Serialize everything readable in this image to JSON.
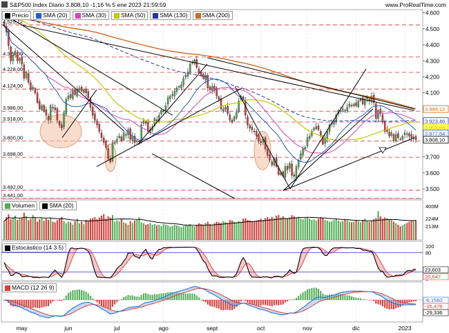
{
  "header": {
    "title": "S&P500 Index Diario 3.808,10 -1,16 % 5 ene 2023 21:59:59",
    "site": "www.ProRealTime.com"
  },
  "colors": {
    "up": "#4caf50",
    "down": "#e53935",
    "sma20": "#1f5fd6",
    "sma30": "#e040c0",
    "sma50": "#c8c800",
    "sma130": "#2233aa",
    "sma200": "#d2691e",
    "trend": "#000000",
    "hline": "#d62728"
  },
  "chart_data": [
    {
      "type": "candlestick",
      "name": "price",
      "legend": [
        "Precio",
        "SMA (20)",
        "SMA (30)",
        "SMA (50)",
        "SMA (130)",
        "SMA (200)"
      ],
      "x_ticks": [
        "may",
        "jun",
        "jul",
        "ago",
        "sept",
        "oct",
        "nov",
        "dic",
        "2023"
      ],
      "ylim": [
        3440,
        4620
      ],
      "y_ticks": [
        3500,
        3600,
        3700,
        3800,
        3900,
        4000,
        4100,
        4200,
        4300,
        4400,
        4500,
        4600
      ],
      "y_tick_labels": [
        "3.500",
        "3.600",
        "3.700",
        "3.800",
        "3.900",
        "4.000",
        "4.100",
        "4.200",
        "4.300",
        "4.400",
        "4.500",
        "4.600"
      ],
      "horizontal_levels": [
        3441,
        3492,
        3698,
        3800,
        3918,
        3986,
        4124,
        4228,
        4324,
        4525
      ],
      "horizontal_level_labels": [
        "3.441,00",
        "3.492,00",
        "3.698,00",
        "3.800,00",
        "3.918,00",
        "3.986,00",
        "4.124,00",
        "4.228,00",
        "4.324,00",
        "4.525,12"
      ],
      "right_value_labels": [
        {
          "value": 3999.12,
          "label": "3.999,12",
          "series": "SMA (200)"
        },
        {
          "value": 3923.46,
          "label": "3.923,46",
          "series": "SMA (130)"
        },
        {
          "value": 3903.65,
          "label": "3.903,65",
          "series": "SMA (50)"
        },
        {
          "value": 3877.84,
          "label": "3.877,84",
          "series": "SMA (20)"
        },
        {
          "value": 3808.1,
          "label": "3.808,10",
          "series": "Precio"
        }
      ],
      "close": [
        4519,
        4480,
        4395,
        4300,
        4335,
        4360,
        4300,
        4315,
        4280,
        4190,
        4230,
        4165,
        4120,
        4135,
        4100,
        4040,
        4000,
        4020,
        3985,
        3960,
        3930,
        4020,
        4010,
        3995,
        3930,
        3900,
        3880,
        3975,
        4060,
        4080,
        4070,
        4115,
        4090,
        4120,
        4130,
        4110,
        4120,
        4100,
        4070,
        4010,
        3960,
        3930,
        3900,
        3860,
        3820,
        3790,
        3760,
        3690,
        3670,
        3790,
        3790,
        3810,
        3830,
        3800,
        3850,
        3840,
        3870,
        3810,
        3830,
        3790,
        3800,
        3800,
        3900,
        3925,
        3910,
        3860,
        3870,
        3890,
        3940,
        3920,
        3960,
        3990,
        3990,
        4020,
        4070,
        4080,
        4090,
        4110,
        4130,
        4140,
        4150,
        4190,
        4210,
        4230,
        4280,
        4290,
        4305,
        4260,
        4230,
        4210,
        4190,
        4210,
        4130,
        4120,
        4140,
        4120,
        4080,
        4060,
        4000,
        4000,
        4010,
        3970,
        3930,
        3920,
        3950,
        3980,
        4050,
        4080,
        4050,
        3960,
        3900,
        3880,
        3870,
        3860,
        3830,
        3800,
        3790,
        3810,
        3750,
        3710,
        3680,
        3650,
        3690,
        3640,
        3590,
        3600,
        3580,
        3640,
        3620,
        3660,
        3585,
        3580,
        3640,
        3680,
        3720,
        3750,
        3760,
        3820,
        3830,
        3860,
        3880,
        3890,
        3870,
        3830,
        3780,
        3820,
        3860,
        3900,
        3910,
        3920,
        3960,
        3990,
        3990,
        4000,
        3990,
        4010,
        4030,
        4020,
        4030,
        4020,
        4050,
        4060,
        4030,
        4060,
        4070,
        4050,
        4080,
        4040,
        3940,
        3990,
        3970,
        3920,
        3860,
        3860,
        3830,
        3850,
        3800,
        3840,
        3820,
        3810,
        3830,
        3850,
        3845,
        3830,
        3820,
        3824,
        3808
      ],
      "volume_legend": [
        "Volumen",
        "SMA (20)"
      ],
      "volume_ticks": [
        "400M",
        "224M",
        "213M"
      ],
      "volume_relative": [
        0.62,
        0.75,
        0.85,
        0.68,
        0.72,
        0.8,
        0.66,
        0.7,
        0.74,
        0.9,
        0.78,
        0.65,
        0.7,
        0.82,
        0.75,
        0.6,
        0.68,
        0.74,
        0.63,
        0.7,
        0.66,
        0.72,
        0.6,
        0.58,
        0.65,
        0.7,
        0.76,
        0.62,
        0.55,
        0.6,
        0.58,
        0.5,
        0.62,
        0.7,
        0.55,
        0.6,
        0.52,
        0.66,
        0.64,
        0.7,
        0.72,
        0.75,
        0.68,
        0.74,
        0.8,
        0.85,
        0.7,
        0.78,
        0.74,
        0.82,
        0.6,
        0.65,
        0.62,
        0.7,
        0.58,
        0.55,
        0.5,
        0.62,
        0.56,
        0.64,
        0.66,
        0.75,
        0.58,
        0.55,
        0.5,
        0.52,
        0.56,
        0.5,
        0.52,
        0.48,
        0.5,
        0.46,
        0.52,
        0.5,
        0.48,
        0.44,
        0.46,
        0.5,
        0.48,
        0.45,
        0.42,
        0.46,
        0.5,
        0.48,
        0.52,
        0.46,
        0.44,
        0.5,
        0.55,
        0.52,
        0.5,
        0.56,
        0.6,
        0.52,
        0.5,
        0.55,
        0.6,
        0.58,
        0.56,
        0.62,
        0.6,
        0.56,
        0.66,
        0.64,
        0.6,
        0.58,
        0.62,
        0.6,
        0.7,
        0.72,
        0.66,
        0.64,
        0.6,
        0.62,
        0.64,
        0.66,
        0.7,
        0.66,
        0.72,
        0.75,
        0.7,
        0.76,
        0.72,
        0.8,
        0.82,
        0.74,
        0.78,
        0.72,
        0.7,
        0.75,
        0.82,
        0.78,
        0.74,
        0.76,
        0.7,
        0.68,
        0.72,
        0.74,
        0.7,
        0.66,
        0.68,
        0.64,
        0.7,
        0.75,
        0.72,
        0.66,
        0.64,
        0.6,
        0.62,
        0.66,
        0.7,
        0.64,
        0.6,
        0.62,
        0.66,
        0.64,
        0.6,
        0.58,
        0.6,
        0.64,
        0.62,
        0.58,
        0.66,
        0.7,
        0.62,
        0.6,
        0.64,
        0.68,
        0.72,
        0.95,
        0.78,
        0.7,
        0.74,
        0.72,
        0.68,
        0.66,
        0.6,
        0.55,
        0.5,
        0.45,
        0.48,
        0.52,
        0.56,
        0.6,
        0.64,
        0.62,
        0.66
      ],
      "stochastic_legend": [
        "Estocástico (14 3 5)"
      ],
      "stochastic_ticks": [
        100,
        80,
        20,
        0
      ],
      "stochastic_labels": [
        "23,603",
        "20,647"
      ],
      "macd_legend": [
        "MACD (12 26 9)"
      ],
      "macd_labels": [
        "-6,1560",
        "-35,478",
        "-29,336"
      ]
    }
  ]
}
